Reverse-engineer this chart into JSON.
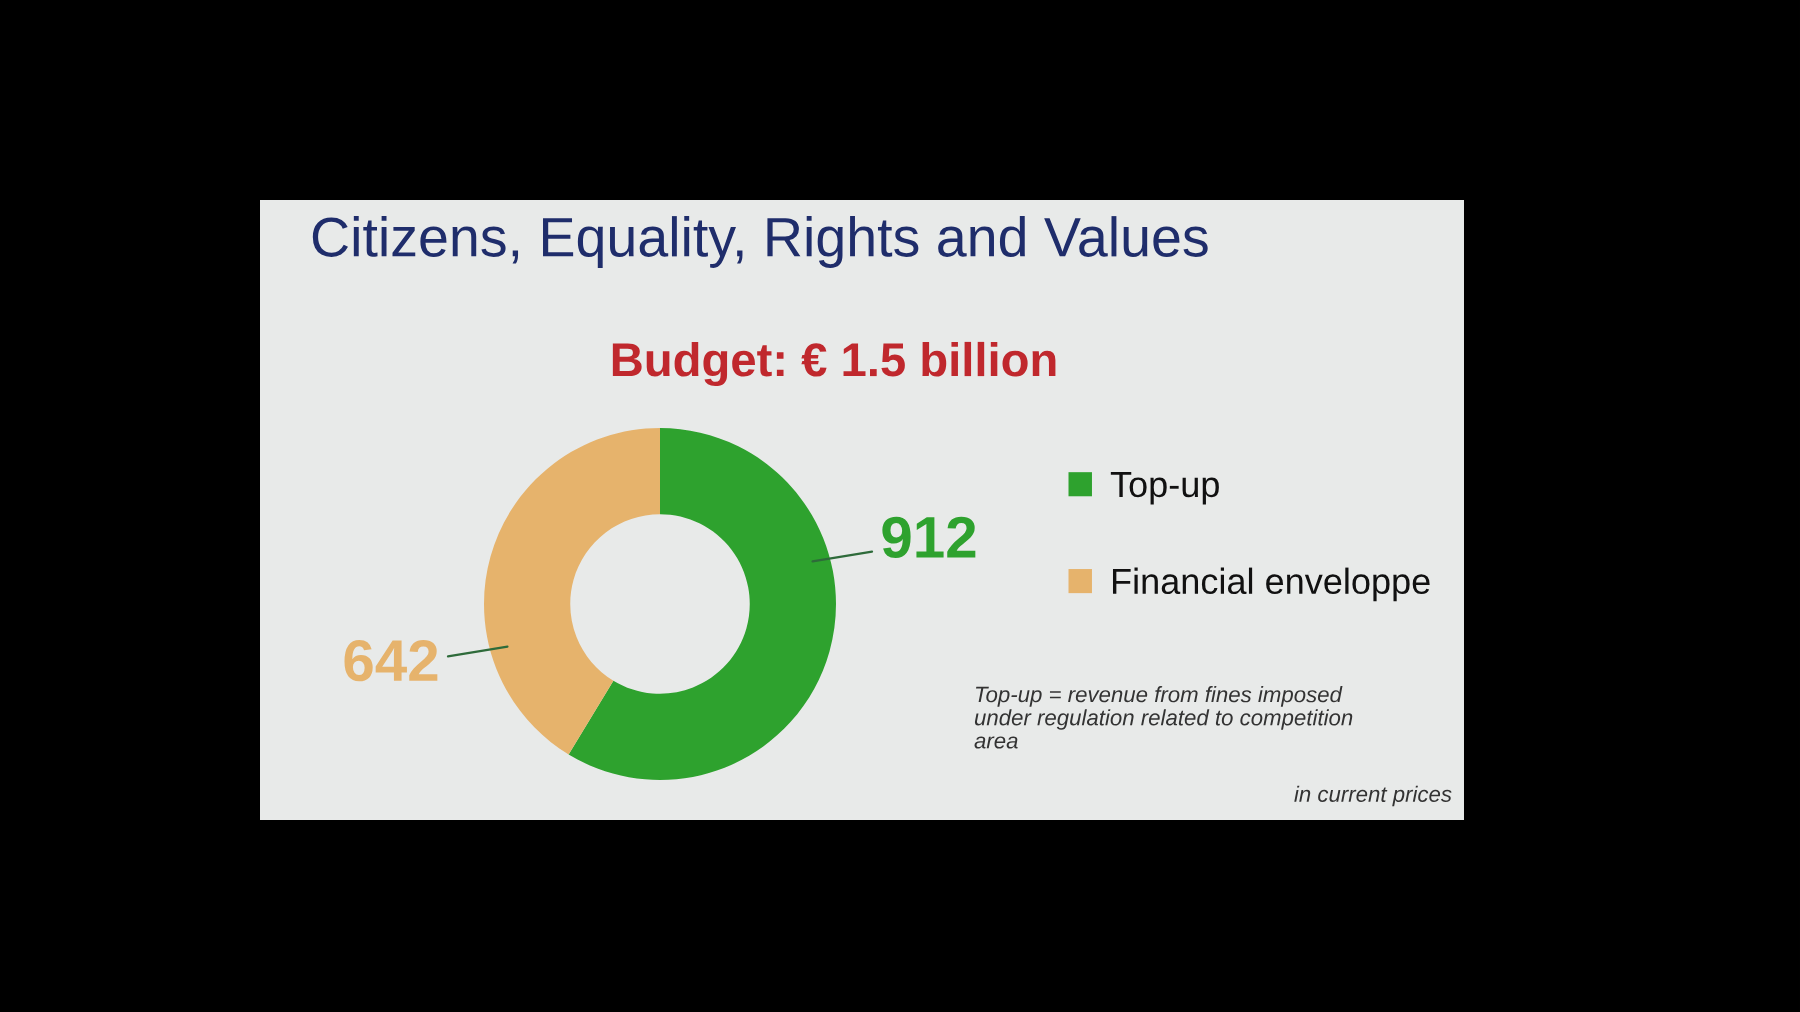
{
  "chart_data": {
    "type": "donut",
    "title": "Citizens, Equality, Rights and Values",
    "subtitle": "Budget: € 1.5 billion",
    "categories": [
      "Top-up",
      "Financial enveloppe"
    ],
    "values": [
      912,
      642
    ],
    "colors": [
      "#2ea22e",
      "#e6b36c"
    ],
    "data_labels": true,
    "legend": "right",
    "annotations": [
      "Top-up = revenue from fines imposed under regulation related to competition area",
      "in current prices"
    ]
  }
}
